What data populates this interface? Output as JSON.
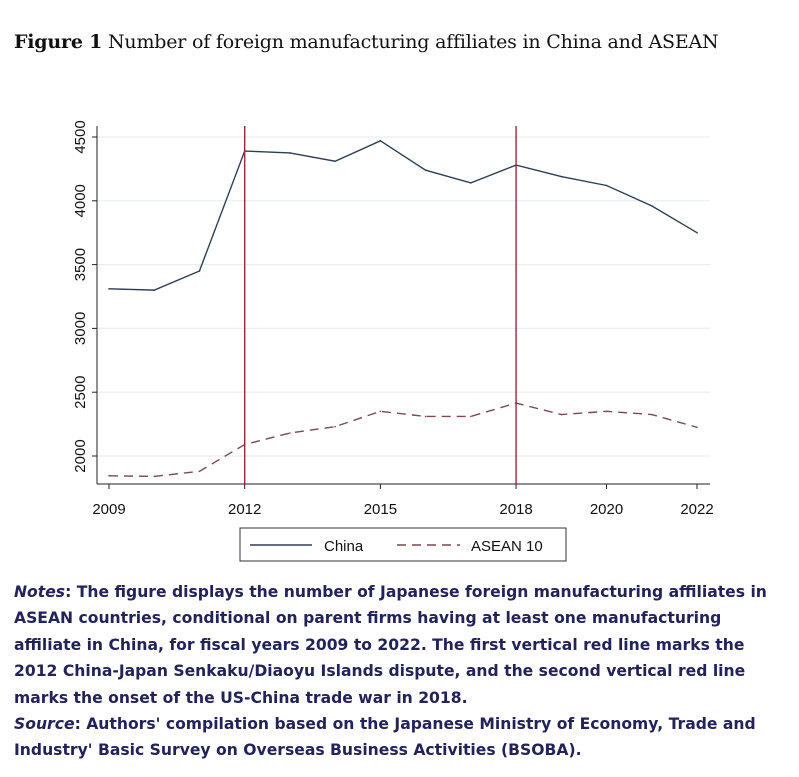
{
  "figure": {
    "label": "Figure 1",
    "title": "Number of foreign manufacturing affiliates in China and ASEAN"
  },
  "chart_data": {
    "type": "line",
    "title": "Number of foreign manufacturing affiliates in China and ASEAN",
    "xlabel": "",
    "ylabel": "",
    "x": [
      2009,
      2010,
      2011,
      2012,
      2013,
      2014,
      2015,
      2016,
      2017,
      2018,
      2019,
      2020,
      2021,
      2022
    ],
    "series": [
      {
        "name": "China",
        "style": "solid",
        "color": "#2e3f55",
        "values": [
          3310,
          3300,
          3450,
          4390,
          4375,
          4310,
          4470,
          4240,
          4140,
          4280,
          4190,
          4120,
          3960,
          3750
        ]
      },
      {
        "name": "ASEAN 10",
        "style": "dashed",
        "color": "#7a4a52",
        "values": [
          1845,
          1840,
          1880,
          2090,
          2180,
          2230,
          2350,
          2310,
          2310,
          2415,
          2325,
          2350,
          2325,
          2225
        ]
      }
    ],
    "xticks": [
      2009,
      2012,
      2015,
      2018,
      2020,
      2022
    ],
    "yticks": [
      2000,
      2500,
      3000,
      3500,
      4000,
      4500
    ],
    "xlim": [
      2008.75,
      2022.3
    ],
    "ylim": [
      1780,
      4585
    ],
    "vlines": [
      {
        "x": 2012,
        "color": "#a0243a"
      },
      {
        "x": 2018,
        "color": "#a0243a"
      }
    ],
    "grid": true,
    "legend_position": "bottom"
  },
  "notes": {
    "notes_label": "Notes",
    "notes_lines": [
      ": The figure displays the number of Japanese foreign manufacturing affiliates in",
      "ASEAN countries, conditional on parent firms having at least one manufacturing",
      "affiliate in China, for fiscal years 2009 to 2022. The first vertical red line marks the",
      "2012 China-Japan Senkaku/Diaoyu Islands dispute, and the second vertical red line",
      "marks the onset of the US-China trade war in 2018."
    ],
    "source_label": "Source",
    "source_lines": [
      ": Authors' compilation based on the Japanese Ministry of Economy, Trade and",
      "Industry' Basic Survey on Overseas Business Activities (BSOBA)."
    ]
  }
}
